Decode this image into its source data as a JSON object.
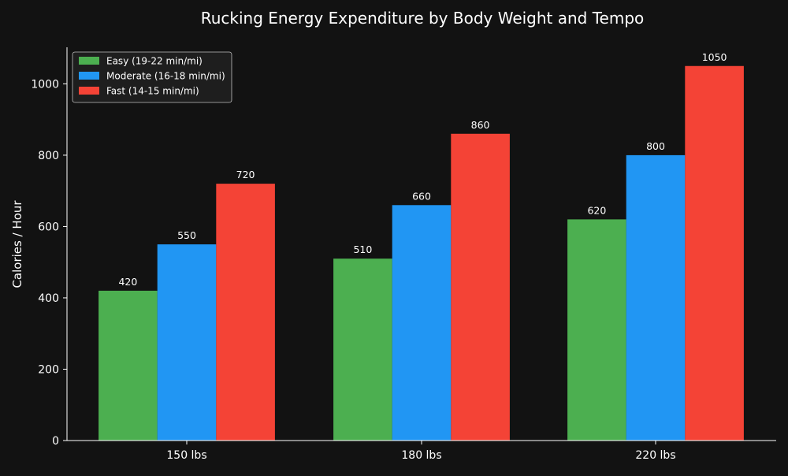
{
  "chart_data": {
    "type": "bar",
    "title": "Rucking Energy Expenditure by Body Weight and Tempo",
    "xlabel": "",
    "ylabel": "Calories / Hour",
    "categories": [
      "150 lbs",
      "180 lbs",
      "220 lbs"
    ],
    "series": [
      {
        "name": "Easy (19-22 min/mi)",
        "color": "#4caf50",
        "values": [
          420,
          510,
          620
        ]
      },
      {
        "name": "Moderate (16-18 min/mi)",
        "color": "#2196f3",
        "values": [
          550,
          660,
          800
        ]
      },
      {
        "name": "Fast (14-15 min/mi)",
        "color": "#f44336",
        "values": [
          720,
          860,
          1050
        ]
      }
    ],
    "ylim": [
      0,
      1102.5
    ],
    "yticks": [
      0,
      200,
      400,
      600,
      800,
      1000
    ],
    "grid": false,
    "legend_position": "top-left",
    "colors": {
      "background": "#121212",
      "text": "#ffffff",
      "axis": "#ffffff",
      "legend_background": "#1e1e1e",
      "legend_border": "#bdbdbd"
    }
  }
}
